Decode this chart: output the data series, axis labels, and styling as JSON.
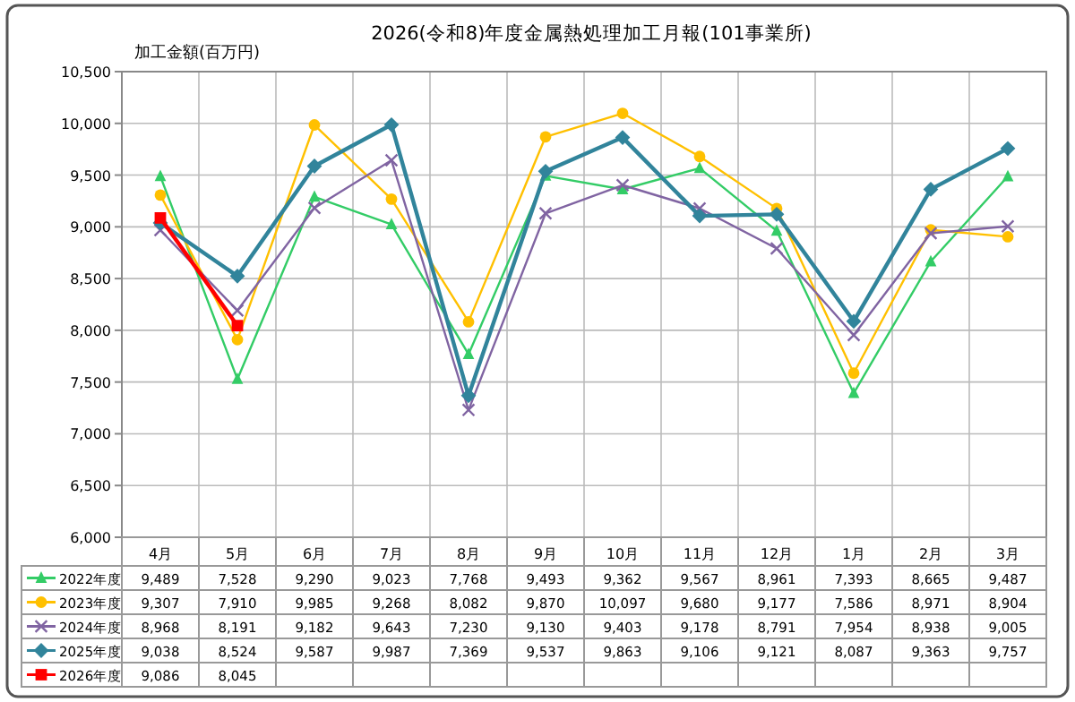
{
  "chart_data": {
    "type": "line",
    "title": "2026(令和8)年度金属熱処理加工月報(101事業所)",
    "ylabel": "加工金額(百万円)",
    "categories": [
      "4月",
      "5月",
      "6月",
      "7月",
      "8月",
      "9月",
      "10月",
      "11月",
      "12月",
      "1月",
      "2月",
      "3月"
    ],
    "ylim": [
      6000,
      10500
    ],
    "yticks": [
      {
        "value": 6000,
        "label": "6,000"
      },
      {
        "value": 6500,
        "label": "6,500"
      },
      {
        "value": 7000,
        "label": "7,000"
      },
      {
        "value": 7500,
        "label": "7,500"
      },
      {
        "value": 8000,
        "label": "8,000"
      },
      {
        "value": 8500,
        "label": "8,500"
      },
      {
        "value": 9000,
        "label": "9,000"
      },
      {
        "value": 9500,
        "label": "9,500"
      },
      {
        "value": 10000,
        "label": "10,000"
      },
      {
        "value": 10500,
        "label": "10,500"
      }
    ],
    "grid": true,
    "legend": "bottom",
    "series": [
      {
        "name": "2022年度",
        "color": "#33cc66",
        "marker": "triangle",
        "values": [
          9489,
          7528,
          9290,
          9023,
          7768,
          9493,
          9362,
          9567,
          8961,
          7393,
          8665,
          9487
        ],
        "value_labels": [
          "9,489",
          "7,528",
          "9,290",
          "9,023",
          "7,768",
          "9,493",
          "9,362",
          "9,567",
          "8,961",
          "7,393",
          "8,665",
          "9,487"
        ]
      },
      {
        "name": "2023年度",
        "color": "#ffc000",
        "marker": "circle",
        "values": [
          9307,
          7910,
          9985,
          9268,
          8082,
          9870,
          10097,
          9680,
          9177,
          7586,
          8971,
          8904
        ],
        "value_labels": [
          "9,307",
          "7,910",
          "9,985",
          "9,268",
          "8,082",
          "9,870",
          "10,097",
          "9,680",
          "9,177",
          "7,586",
          "8,971",
          "8,904"
        ]
      },
      {
        "name": "2024年度",
        "color": "#8064a2",
        "marker": "cross",
        "values": [
          8968,
          8191,
          9182,
          9643,
          7230,
          9130,
          9403,
          9178,
          8791,
          7954,
          8938,
          9005
        ],
        "value_labels": [
          "8,968",
          "8,191",
          "9,182",
          "9,643",
          "7,230",
          "9,130",
          "9,403",
          "9,178",
          "8,791",
          "7,954",
          "8,938",
          "9,005"
        ]
      },
      {
        "name": "2025年度",
        "color": "#31849b",
        "marker": "diamond",
        "values": [
          9038,
          8524,
          9587,
          9987,
          7369,
          9537,
          9863,
          9106,
          9121,
          8087,
          9363,
          9757
        ],
        "value_labels": [
          "9,038",
          "8,524",
          "9,587",
          "9,987",
          "7,369",
          "9,537",
          "9,863",
          "9,106",
          "9,121",
          "8,087",
          "9,363",
          "9,757"
        ]
      },
      {
        "name": "2026年度",
        "color": "#ff0000",
        "marker": "square",
        "values": [
          9086,
          8045,
          null,
          null,
          null,
          null,
          null,
          null,
          null,
          null,
          null,
          null
        ],
        "value_labels": [
          "9,086",
          "8,045",
          null,
          null,
          null,
          null,
          null,
          null,
          null,
          null,
          null,
          null
        ]
      }
    ]
  }
}
